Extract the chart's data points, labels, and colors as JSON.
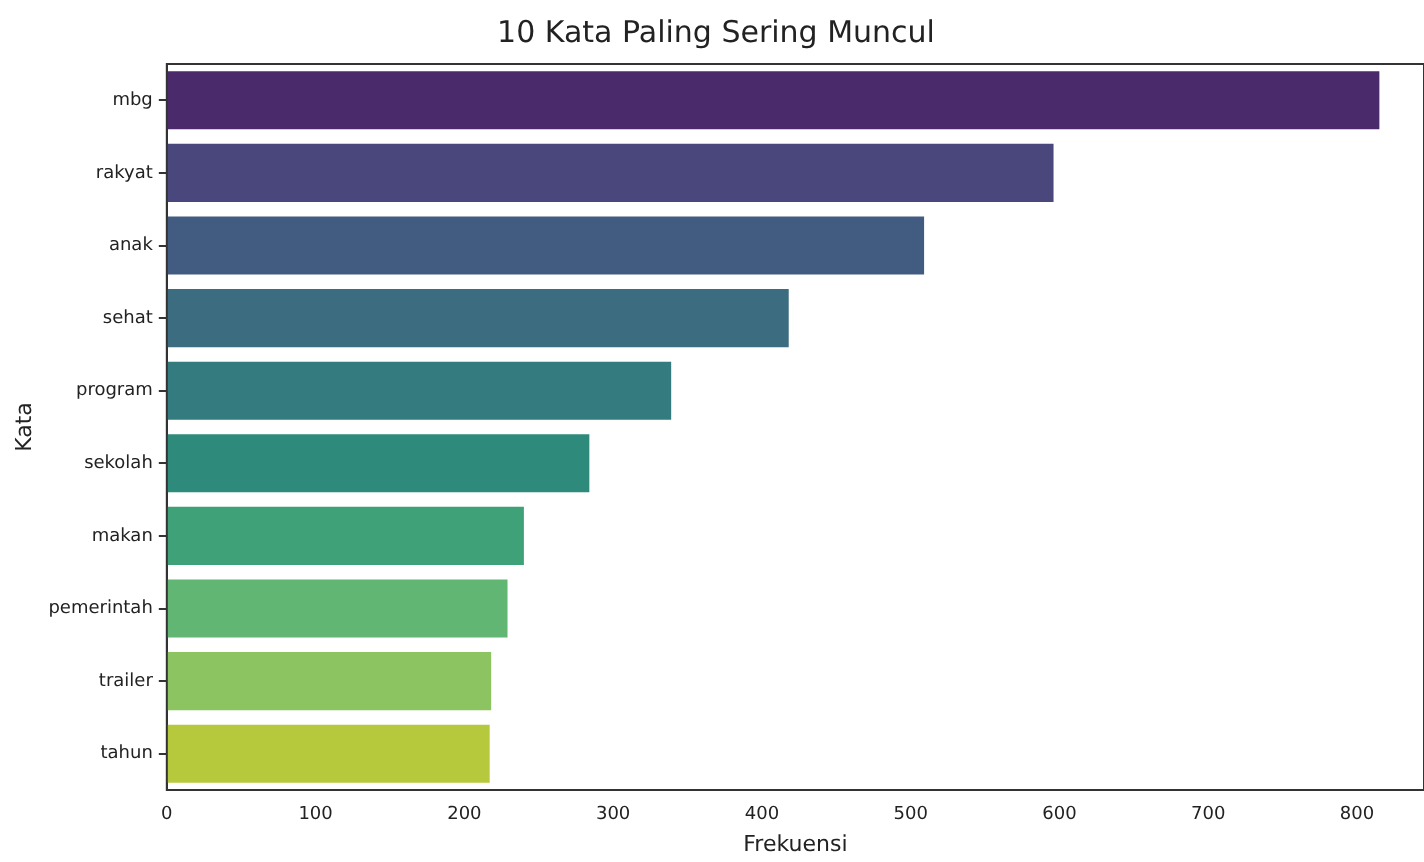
{
  "chart_data": {
    "type": "bar",
    "orientation": "horizontal",
    "title": "10 Kata Paling Sering Muncul",
    "xlabel": "Frekuensi",
    "ylabel": "Kata",
    "categories": [
      "mbg",
      "rakyat",
      "anak",
      "sehat",
      "program",
      "sekolah",
      "makan",
      "pemerintah",
      "trailer",
      "tahun"
    ],
    "values": [
      815,
      596,
      509,
      418,
      339,
      284,
      240,
      229,
      218,
      217
    ],
    "colors": [
      "#4b2a6b",
      "#4a477d",
      "#425c81",
      "#3b6c80",
      "#337b7e",
      "#2e8a7a",
      "#3ea178",
      "#60b672",
      "#8bc461",
      "#b6c93c"
    ],
    "xlim": [
      0,
      845
    ],
    "xticks": [
      0,
      100,
      200,
      300,
      400,
      500,
      600,
      700,
      800
    ],
    "grid": false,
    "legend": false
  }
}
